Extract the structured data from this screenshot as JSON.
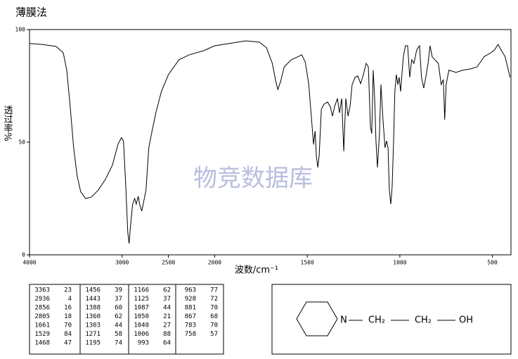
{
  "chart_data": {
    "type": "line",
    "title": "薄膜法",
    "y_label": "透过率%",
    "x_label": "波数/cm⁻¹",
    "color": "#000000",
    "x_scale_break": 2000,
    "xlim": [
      4000,
      400
    ],
    "xticks": [
      4000,
      3000,
      2500,
      2000,
      1500,
      1000,
      500
    ],
    "ylim": [
      0,
      100
    ],
    "yticks": [
      0,
      50,
      100
    ],
    "x": [
      4000,
      3864,
      3712,
      3636,
      3598,
      3561,
      3523,
      3485,
      3447,
      3394,
      3333,
      3258,
      3182,
      3106,
      3045,
      3008,
      2985,
      2962,
      2939,
      2924,
      2909,
      2886,
      2864,
      2848,
      2826,
      2811,
      2788,
      2765,
      2742,
      2712,
      2682,
      2636,
      2576,
      2500,
      2386,
      2273,
      2121,
      2000,
      1909,
      1833,
      1758,
      1720,
      1689,
      1670,
      1659,
      1644,
      1625,
      1587,
      1549,
      1530,
      1511,
      1492,
      1477,
      1466,
      1458,
      1451,
      1443,
      1436,
      1424,
      1409,
      1390,
      1375,
      1364,
      1352,
      1337,
      1326,
      1314,
      1303,
      1292,
      1280,
      1269,
      1258,
      1242,
      1227,
      1212,
      1197,
      1182,
      1170,
      1159,
      1152,
      1144,
      1136,
      1129,
      1121,
      1110,
      1102,
      1091,
      1080,
      1072,
      1064,
      1057,
      1049,
      1042,
      1034,
      1027,
      1019,
      1011,
      1004,
      996,
      989,
      981,
      970,
      958,
      947,
      936,
      924,
      909,
      894,
      883,
      871,
      860,
      848,
      837,
      826,
      811,
      792,
      777,
      765,
      758,
      750,
      735,
      697,
      659,
      621,
      583,
      545,
      508,
      489,
      470,
      451,
      432,
      405
    ],
    "values": [
      93.8,
      93.4,
      92.5,
      89.7,
      82,
      66,
      47.5,
      35,
      28,
      25,
      25.6,
      28.7,
      33.4,
      39.7,
      49,
      52,
      50.6,
      32,
      10,
      5,
      13,
      22.5,
      25,
      22.5,
      26,
      22.5,
      19.4,
      24,
      28.7,
      47.5,
      53.8,
      63,
      72.5,
      80,
      86.6,
      88.8,
      90.6,
      92.8,
      94,
      95,
      94.4,
      91.9,
      85,
      77,
      73.4,
      77,
      83.4,
      86.6,
      88,
      88.8,
      85.6,
      75.6,
      60,
      49,
      55,
      44,
      38.8,
      44,
      64.7,
      66.9,
      67.8,
      65.6,
      61.6,
      66,
      69.4,
      63,
      69.4,
      46,
      69.4,
      61.6,
      66,
      75.6,
      78.8,
      79.4,
      76,
      80,
      85,
      83.4,
      57,
      53.8,
      82,
      69,
      50.6,
      38.8,
      53.8,
      75.6,
      60,
      47.5,
      50.6,
      47.5,
      28.8,
      22.5,
      30,
      50.6,
      72.5,
      80,
      75.6,
      78.8,
      72.5,
      80,
      88,
      92.8,
      92.8,
      78.8,
      86.6,
      85,
      91,
      92.8,
      78.8,
      74,
      78.8,
      85,
      92.8,
      88,
      86.6,
      85,
      75.6,
      77.8,
      60,
      75.6,
      82,
      81,
      82,
      82.5,
      83.4,
      88,
      89.7,
      91,
      93.4,
      90.6,
      88,
      78.8
    ]
  },
  "watermark": "物竞数据库",
  "peak_table": {
    "columns": [
      [
        [
          "3363",
          "23"
        ],
        [
          "2936",
          "4"
        ],
        [
          "2856",
          "16"
        ],
        [
          "2805",
          "18"
        ],
        [
          "1661",
          "70"
        ],
        [
          "1529",
          "84"
        ],
        [
          "1468",
          "47"
        ]
      ],
      [
        [
          "1456",
          "39"
        ],
        [
          "1443",
          "37"
        ],
        [
          "1388",
          "60"
        ],
        [
          "1360",
          "62"
        ],
        [
          "1303",
          "44"
        ],
        [
          "1271",
          "58"
        ],
        [
          "1195",
          "74"
        ]
      ],
      [
        [
          "1166",
          "62"
        ],
        [
          "1125",
          "37"
        ],
        [
          "1087",
          "44"
        ],
        [
          "1050",
          "21"
        ],
        [
          "1040",
          "27"
        ],
        [
          "1006",
          "88"
        ],
        [
          "993",
          "64"
        ]
      ],
      [
        [
          "963",
          "77"
        ],
        [
          "928",
          "72"
        ],
        [
          "881",
          "70"
        ],
        [
          "867",
          "68"
        ],
        [
          "783",
          "70"
        ],
        [
          "758",
          "57"
        ]
      ]
    ]
  },
  "structure": {
    "atoms": [
      "N",
      "CH₂",
      "CH₂",
      "OH"
    ]
  }
}
